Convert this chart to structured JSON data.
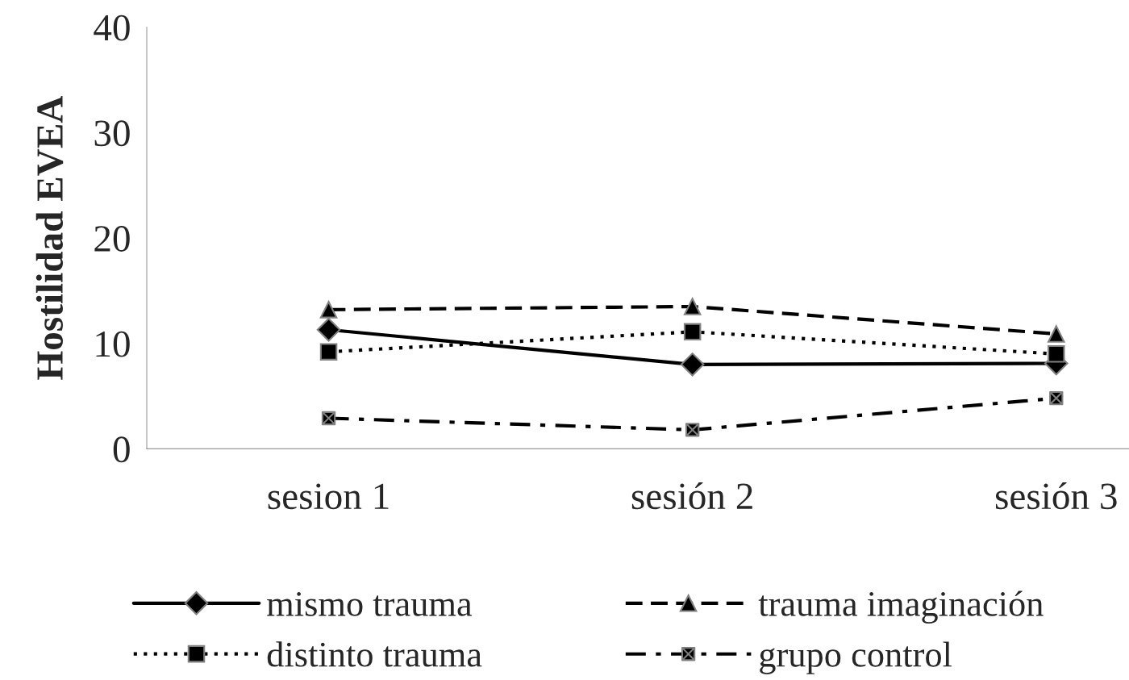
{
  "chart_data": {
    "type": "line",
    "ylabel": "Hostilidad EVEA",
    "categories": [
      "sesion 1",
      "sesión 2",
      "sesión 3"
    ],
    "ylim": [
      0,
      40
    ],
    "yticks": [
      0,
      10,
      20,
      30,
      40
    ],
    "grid": false,
    "legend": "bottom",
    "series": [
      {
        "name": "mismo trauma",
        "color": "#000000",
        "values": [
          11.3,
          8.0,
          8.1
        ],
        "marker": "diamond",
        "line_style": "solid"
      },
      {
        "name": "distinto trauma",
        "color": "#000000",
        "values": [
          9.2,
          11.1,
          9.0
        ],
        "marker": "square",
        "line_style": "dotted"
      },
      {
        "name": "trauma imaginación",
        "color": "#000000",
        "values": [
          13.2,
          13.5,
          10.9
        ],
        "marker": "triangle",
        "line_style": "dashed"
      },
      {
        "name": "grupo control",
        "color": "#000000",
        "values": [
          2.9,
          1.8,
          4.8
        ],
        "marker": "cross",
        "line_style": "dashdot"
      }
    ]
  }
}
